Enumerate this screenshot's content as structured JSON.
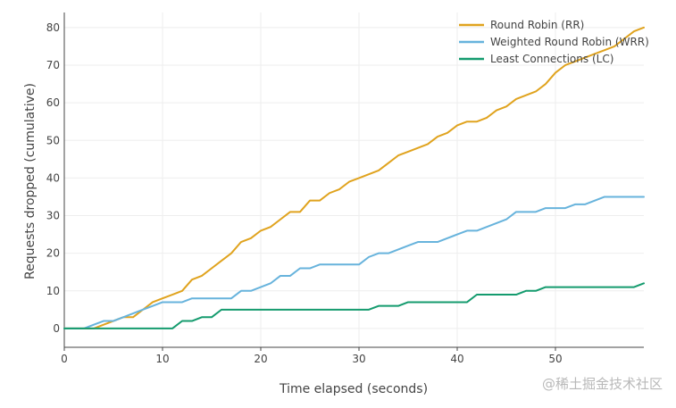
{
  "chart_data": {
    "type": "line",
    "xlabel": "Time elapsed (seconds)",
    "ylabel": "Requests dropped (cumulative)",
    "xlim": [
      0,
      59
    ],
    "ylim": [
      -5,
      84
    ],
    "xticks": [
      0,
      10,
      20,
      30,
      40,
      50
    ],
    "yticks": [
      0,
      10,
      20,
      30,
      40,
      50,
      60,
      70,
      80
    ],
    "grid": true,
    "legend_position": "top-right",
    "x": [
      0,
      1,
      2,
      3,
      4,
      5,
      6,
      7,
      8,
      9,
      10,
      11,
      12,
      13,
      14,
      15,
      16,
      17,
      18,
      19,
      20,
      21,
      22,
      23,
      24,
      25,
      26,
      27,
      28,
      29,
      30,
      31,
      32,
      33,
      34,
      35,
      36,
      37,
      38,
      39,
      40,
      41,
      42,
      43,
      44,
      45,
      46,
      47,
      48,
      49,
      50,
      51,
      52,
      53,
      54,
      55,
      56,
      57,
      58,
      59
    ],
    "series": [
      {
        "name": "Round Robin (RR)",
        "color": "#e0a31e",
        "values": [
          0,
          0,
          0,
          0,
          1,
          2,
          3,
          3,
          5,
          7,
          8,
          9,
          10,
          13,
          14,
          16,
          18,
          20,
          23,
          24,
          26,
          27,
          29,
          31,
          31,
          34,
          34,
          36,
          37,
          39,
          40,
          41,
          42,
          44,
          46,
          47,
          48,
          49,
          51,
          52,
          54,
          55,
          55,
          56,
          58,
          59,
          61,
          62,
          63,
          65,
          68,
          70,
          71,
          72,
          73,
          74,
          75,
          77,
          79,
          80
        ]
      },
      {
        "name": "Weighted Round Robin (WRR)",
        "color": "#67b3dc",
        "values": [
          0,
          0,
          0,
          1,
          2,
          2,
          3,
          4,
          5,
          6,
          7,
          7,
          7,
          8,
          8,
          8,
          8,
          8,
          10,
          10,
          11,
          12,
          14,
          14,
          16,
          16,
          17,
          17,
          17,
          17,
          17,
          19,
          20,
          20,
          21,
          22,
          23,
          23,
          23,
          24,
          25,
          26,
          26,
          27,
          28,
          29,
          31,
          31,
          31,
          32,
          32,
          32,
          33,
          33,
          34,
          35,
          35,
          35,
          35,
          35
        ]
      },
      {
        "name": "Least Connections (LC)",
        "color": "#149b6e",
        "values": [
          0,
          0,
          0,
          0,
          0,
          0,
          0,
          0,
          0,
          0,
          0,
          0,
          2,
          2,
          3,
          3,
          5,
          5,
          5,
          5,
          5,
          5,
          5,
          5,
          5,
          5,
          5,
          5,
          5,
          5,
          5,
          5,
          6,
          6,
          6,
          7,
          7,
          7,
          7,
          7,
          7,
          7,
          9,
          9,
          9,
          9,
          9,
          10,
          10,
          11,
          11,
          11,
          11,
          11,
          11,
          11,
          11,
          11,
          11,
          12
        ]
      }
    ]
  },
  "watermark": {
    "text": "@稀土掘金技术社区"
  }
}
